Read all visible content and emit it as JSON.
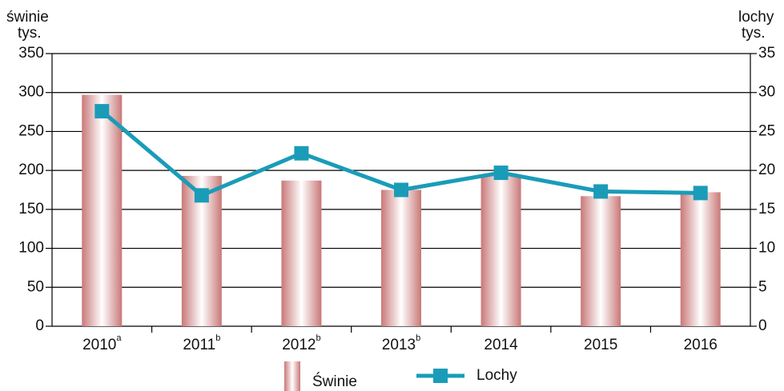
{
  "chart_data": {
    "type": "bar",
    "ylabel": "świnie",
    "ylabel_unit": "tys.",
    "y2label": "lochy",
    "y2label_unit": "tys.",
    "categories": [
      "2010",
      "2011",
      "2012",
      "2013",
      "2014",
      "2015",
      "2016"
    ],
    "category_notes": [
      "a",
      "b",
      "b",
      "b",
      null,
      null,
      null
    ],
    "series": [
      {
        "name": "Świnie",
        "type": "bar",
        "color": "#c97878",
        "values": [
          297,
          193,
          187,
          175,
          193,
          167,
          172
        ]
      },
      {
        "name": "Lochy",
        "type": "line",
        "axis": "y2",
        "color": "#1a9cb8",
        "values": [
          27.6,
          16.8,
          22.2,
          17.5,
          19.7,
          17.3,
          17.1
        ]
      }
    ],
    "ylim": [
      0,
      350
    ],
    "yticks": [
      0,
      50,
      100,
      150,
      200,
      250,
      300,
      350
    ],
    "y2lim": [
      0,
      35
    ],
    "y2ticks": [
      0,
      5,
      10,
      15,
      20,
      25,
      30,
      35
    ],
    "grid": true,
    "legend": "bottom"
  }
}
